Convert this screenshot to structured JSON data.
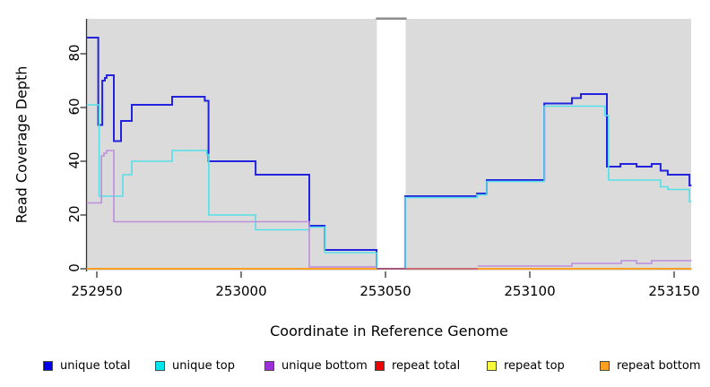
{
  "panel": {
    "bg_color": "#DBDBDB",
    "gap_cap_color": "#8C8C8C",
    "axis_color": "#333333"
  },
  "y_axis": {
    "title": "Read Coverage Depth",
    "ticks": [
      0,
      20,
      40,
      60,
      80
    ]
  },
  "x_axis": {
    "title": "Coordinate in Reference Genome",
    "ticks": [
      252950,
      253000,
      253050,
      253100,
      253150
    ]
  },
  "legend": [
    {
      "label": "unique total",
      "color": "#0000EE"
    },
    {
      "label": "unique top",
      "color": "#00E5EE"
    },
    {
      "label": "unique bottom",
      "color": "#9B30D9"
    },
    {
      "label": "repeat total",
      "color": "#EE0000"
    },
    {
      "label": "repeat top",
      "color": "#F7F73B"
    },
    {
      "label": "repeat bottom",
      "color": "#FFA022"
    }
  ],
  "chart_data": {
    "type": "line",
    "step": true,
    "title": "",
    "xlabel": "Coordinate in Reference Genome",
    "ylabel": "Read Coverage Depth",
    "xlim": [
      252946.5,
      253156
    ],
    "ylim": [
      0,
      87
    ],
    "grid": false,
    "legend_position": "bottom",
    "coverage_gap": {
      "x_start": 253047,
      "x_end": 253057
    },
    "series": [
      {
        "name": "unique total",
        "color": "#2323DD",
        "width": 2,
        "segments": [
          [
            [
              252946.5,
              86
            ],
            [
              252950.5,
              53.5
            ],
            [
              252951.9,
              70
            ],
            [
              252952.8,
              71
            ],
            [
              252953.4,
              72
            ],
            [
              252955.9,
              47.5
            ],
            [
              252958.4,
              55
            ],
            [
              252962.1,
              61
            ],
            [
              252976.1,
              64
            ],
            [
              252987.4,
              62.5
            ],
            [
              252988.7,
              40
            ],
            [
              253005,
              35
            ],
            [
              253023.6,
              16
            ],
            [
              253028.9,
              7
            ],
            [
              253046.9,
              0
            ],
            [
              253056.8,
              27
            ],
            [
              253081.7,
              28
            ],
            [
              253085.1,
              33
            ],
            [
              253105,
              61.5
            ],
            [
              253114.6,
              63.5
            ],
            [
              253117.7,
              65
            ],
            [
              253126.7,
              38
            ],
            [
              253131.4,
              39
            ],
            [
              253137,
              38
            ],
            [
              253142.2,
              39
            ],
            [
              253145.3,
              36.5
            ],
            [
              253147.8,
              35
            ],
            [
              253155.3,
              31
            ],
            [
              253156,
              31
            ]
          ]
        ]
      },
      {
        "name": "unique top",
        "color": "#55DFE8",
        "width": 1.6,
        "segments": [
          [
            [
              252946.5,
              61
            ],
            [
              252950.8,
              27
            ],
            [
              252959,
              35
            ],
            [
              252962.1,
              40
            ],
            [
              252976.1,
              44
            ],
            [
              252988.1,
              42.5
            ],
            [
              252988.8,
              20
            ],
            [
              253005,
              14.5
            ],
            [
              253023.6,
              15.5
            ],
            [
              253028.9,
              6
            ],
            [
              253046.9,
              0
            ],
            [
              253056.8,
              26.5
            ],
            [
              253081.7,
              27.5
            ],
            [
              253085.1,
              32.5
            ],
            [
              253105,
              60.5
            ],
            [
              253126,
              57
            ],
            [
              253127.3,
              33
            ],
            [
              253145.3,
              30.5
            ],
            [
              253147.8,
              29.5
            ],
            [
              253155.3,
              25
            ],
            [
              253156,
              25
            ]
          ]
        ]
      },
      {
        "name": "unique bottom",
        "color": "#BE8EDC",
        "width": 1.6,
        "segments": [
          [
            [
              252946.5,
              24.5
            ],
            [
              252951.6,
              42
            ],
            [
              252952.5,
              43
            ],
            [
              252953.4,
              44
            ],
            [
              252955.9,
              17.5
            ],
            [
              253023.6,
              0.7
            ],
            [
              253046.9,
              0.7
            ]
          ],
          [
            [
              253082,
              1
            ],
            [
              253114.6,
              2
            ],
            [
              253131.7,
              3
            ],
            [
              253137,
              2
            ],
            [
              253142.2,
              3
            ],
            [
              253156,
              3
            ]
          ]
        ]
      },
      {
        "name": "repeat total",
        "color": "#C44A55",
        "width": 1.5,
        "segments": [
          [
            [
              252946.5,
              0
            ],
            [
              253156,
              0
            ]
          ]
        ]
      },
      {
        "name": "repeat top",
        "color": "#F7F73B",
        "width": 1.5,
        "segments": [
          [
            [
              252946.5,
              0
            ],
            [
              253046.9,
              0
            ]
          ],
          [
            [
              253082,
              0
            ],
            [
              253156,
              0
            ]
          ]
        ]
      },
      {
        "name": "repeat bottom",
        "color": "#FFA022",
        "width": 2,
        "segments": [
          [
            [
              252946.5,
              0
            ],
            [
              253046.9,
              0
            ]
          ],
          [
            [
              253082,
              0
            ],
            [
              253156,
              0
            ]
          ]
        ]
      }
    ]
  }
}
